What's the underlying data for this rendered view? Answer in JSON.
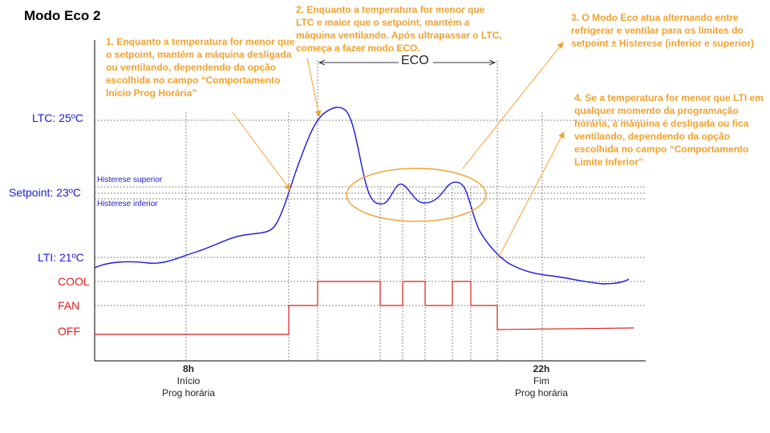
{
  "title": "Modo Eco 2",
  "y_labels": {
    "ltc": "LTC: 25ºC",
    "setpoint": "Setpoint: 23ºC",
    "lti": "LTI: 21ºC",
    "cool": "COOL",
    "fan": "FAN",
    "off": "OFF",
    "histerese_superior": "Histerese superior",
    "histerese_inferior": "Histerese inferior"
  },
  "eco_label": "ECO",
  "notes": [
    "1. Enquanto a temperatura for menor que o setpoint, mantém a máquina desligada ou ventilando, dependendo da opção escolhida no campo “Comportamento Início Prog Horária”",
    "2. Enquanto a temperatura for menor que LTC e maior que o setpoint, mantém a máquina ventilando. Após ultrapassar o LTC, começa a fazer modo ECO.",
    "3. O Modo Eco atua alternando entre refrigerar e ventilar para os limites do setpoint ± Histerese (inferior e superior)",
    "4. Se a temperatura for menor que LTI em qualquer momento da programação horária, a máquina é desligada ou fica ventilando, dependendo da opção escolhida no campo “Comportamento Limite Inferior”"
  ],
  "x_labels": {
    "start": {
      "hour": "8h",
      "line1": "Início",
      "line2": "Prog horária"
    },
    "end": {
      "hour": "22h",
      "line1": "Fim",
      "line2": "Prog horária"
    }
  },
  "colors": {
    "temperature_curve": "#1a1adc",
    "state_line": "#d61c1c",
    "annotation": "#f2a12e",
    "gridline": "#888888"
  }
}
